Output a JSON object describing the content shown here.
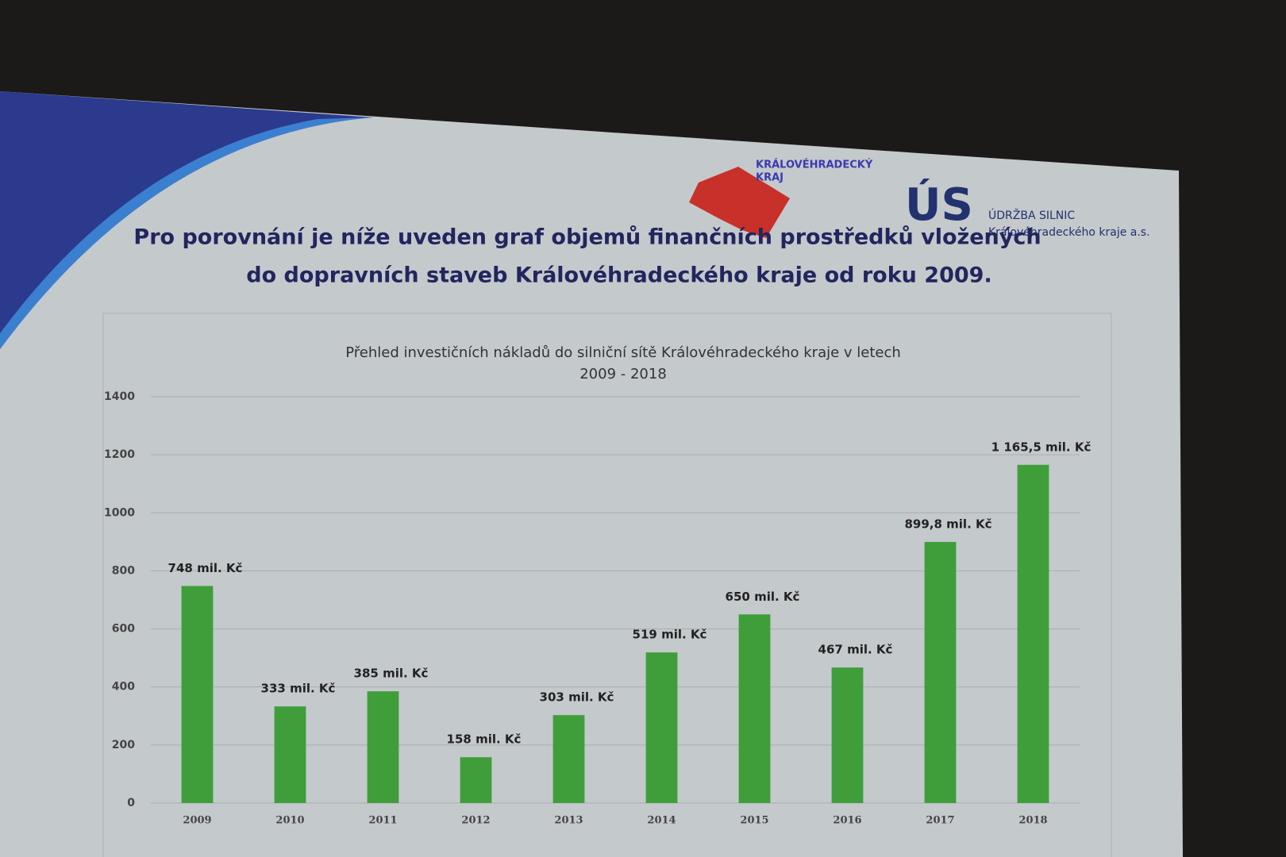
{
  "slide": {
    "headline": [
      "Pro porovnání je níže uveden graf objemů finančních prostředků vložených",
      "do dopravních staveb Královéhradeckého kraje od roku 2009."
    ],
    "logo_region": [
      "KRÁLOVÉHRADECKÝ",
      "KRAJ"
    ],
    "logo_us": {
      "mark": "ÚS",
      "lines": [
        "ÚDRŽBA SILNIC",
        "Královéhradeckého kraje a.s."
      ]
    }
  },
  "chart_data": {
    "type": "bar",
    "title": [
      "Přehled investičních nákladů do silniční sítě Královéhradeckého kraje v letech",
      "2009 - 2018"
    ],
    "categories": [
      "2009",
      "2010",
      "2011",
      "2012",
      "2013",
      "2014",
      "2015",
      "2016",
      "2017",
      "2018"
    ],
    "values": [
      748,
      333,
      385,
      158,
      303,
      519,
      650,
      467,
      899.8,
      1165.5
    ],
    "value_labels": [
      "748 mil. Kč",
      "333 mil. Kč",
      "385 mil. Kč",
      "158 mil. Kč",
      "303 mil. Kč",
      "519 mil. Kč",
      "650 mil. Kč",
      "467 mil. Kč",
      "899,8 mil. Kč",
      "1 165,5 mil. Kč"
    ],
    "color": "#3f9e3a",
    "ylim": [
      0,
      1400
    ],
    "yticks": [
      0,
      200,
      400,
      600,
      800,
      1000,
      1200,
      1400
    ],
    "grid": true
  }
}
